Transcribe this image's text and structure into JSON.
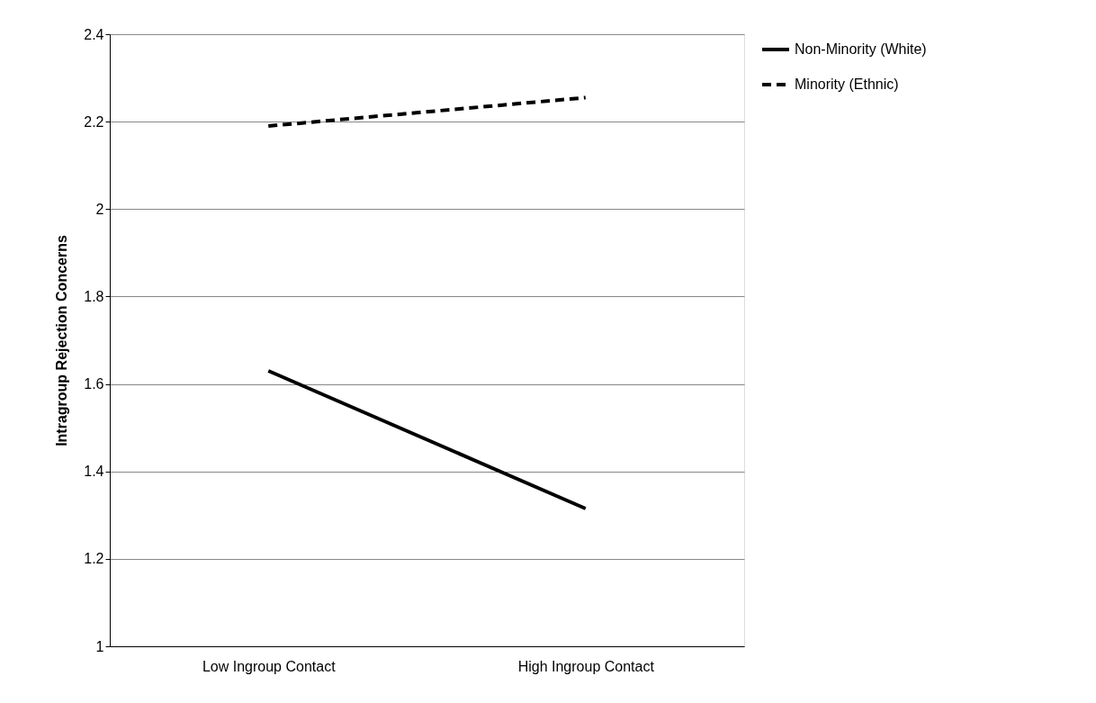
{
  "chart_data": {
    "type": "line",
    "ylabel": "Intragroup Rejection Concerns",
    "categories": [
      "Low Ingroup Contact",
      "High Ingroup Contact"
    ],
    "series": [
      {
        "name": "Non-Minority (White)",
        "color": "#000000",
        "values": [
          1.63,
          1.315
        ],
        "line_style": "solid"
      },
      {
        "name": "Minority (Ethnic)",
        "color": "#000000",
        "values": [
          2.19,
          2.255
        ],
        "line_style": "dashed"
      }
    ],
    "ylim": [
      1,
      2.4
    ],
    "yticks": [
      1,
      1.2,
      1.4,
      1.6,
      1.8,
      2,
      2.2,
      2.4
    ],
    "grid": "y",
    "legend": "right",
    "marker": "none"
  }
}
